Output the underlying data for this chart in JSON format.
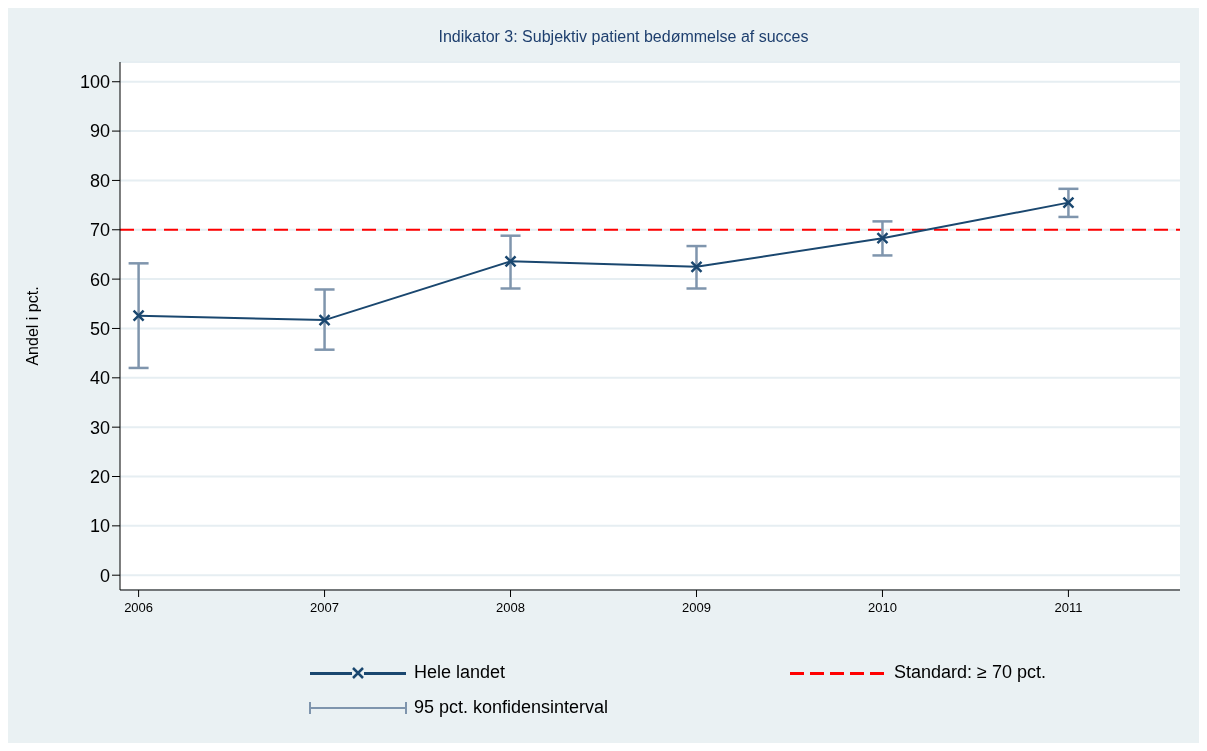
{
  "chart_data": {
    "type": "line",
    "title": "Indikator 3: Subjektiv patient bedømmelse af succes",
    "ylabel": "Andel i pct.",
    "x": [
      2006,
      2007,
      2008,
      2009,
      2010,
      2011
    ],
    "series": [
      {
        "name": "Hele landet",
        "color": "#1a476f",
        "values": [
          52.6,
          51.7,
          63.6,
          62.5,
          68.3,
          75.5
        ],
        "errors": [
          [
            42.0,
            63.2
          ],
          [
            45.7,
            57.9
          ],
          [
            58.1,
            68.8
          ],
          [
            58.1,
            66.7
          ],
          [
            64.8,
            71.7
          ],
          [
            72.6,
            78.3
          ]
        ]
      }
    ],
    "xlim": [
      2005.9,
      2011.6
    ],
    "xticks": [
      2006,
      2007,
      2008,
      2009,
      2010,
      2011
    ],
    "ylim": [
      -3,
      104
    ],
    "yticks": [
      0,
      10,
      20,
      30,
      40,
      50,
      60,
      70,
      80,
      90,
      100
    ],
    "ref_lines": [
      {
        "axis": "y",
        "value": 70,
        "label": "Standard: ≥ 70 pct.",
        "color": "#ff0000",
        "line_style": "dashed"
      }
    ],
    "annotations": [
      "95 pct. konfidensinterval"
    ],
    "grid": "y",
    "legend": "bottom",
    "marker": "cross",
    "line_style": "solid"
  }
}
